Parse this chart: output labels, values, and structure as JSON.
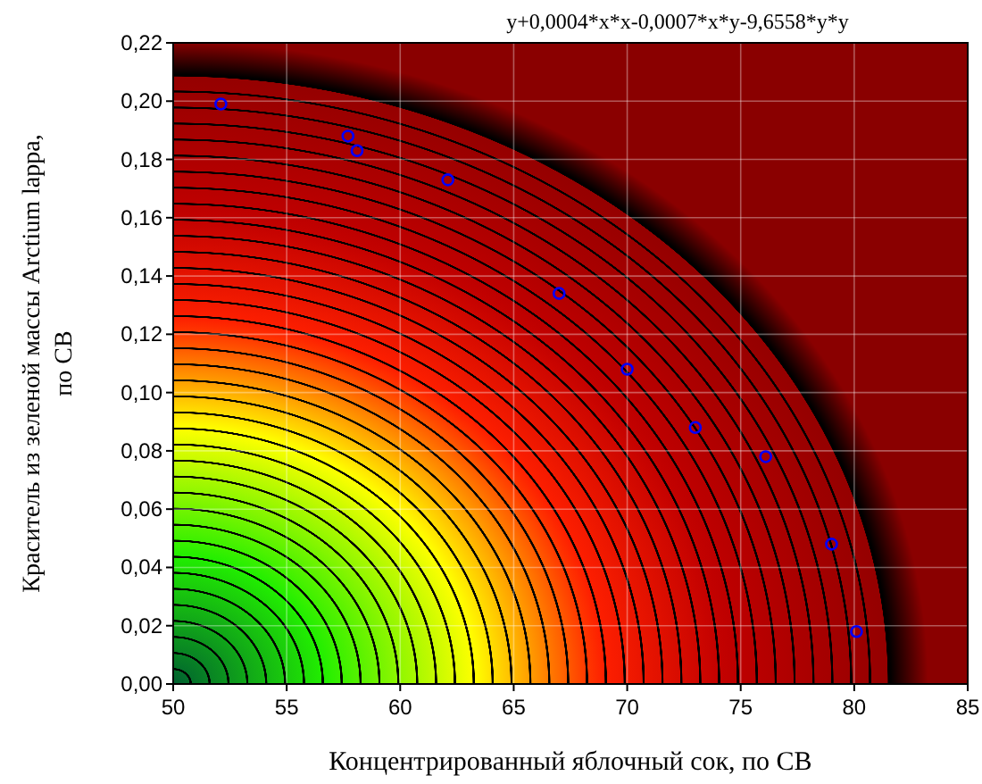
{
  "chart_data": {
    "type": "scatter",
    "title": "y+0,0004*x*x-0,0007*x*y-9,6558*y*y",
    "xlabel": "Концентрированный яблочный сок, по СВ",
    "ylabel": "Краситель из зеленой массы Arctium lappa, по СВ",
    "x": [
      52.1,
      57.7,
      58.1,
      62.1,
      67.0,
      70.0,
      73.0,
      76.1,
      79.0,
      80.1
    ],
    "series": [
      {
        "color": "#0000ff",
        "values": [
          0.199,
          0.188,
          0.183,
          0.173,
          0.134,
          0.108,
          0.088,
          0.078,
          0.048,
          0.018
        ]
      }
    ],
    "marker": "circle",
    "grid": true,
    "xlim": [
      50,
      85
    ],
    "xticks": [
      50,
      55,
      60,
      65,
      70,
      75,
      80,
      85
    ],
    "ylim": [
      0,
      0.22
    ],
    "yticks": [
      {
        "value": 0,
        "label": "0,00"
      },
      {
        "value": 0.02,
        "label": "0,02"
      },
      {
        "value": 0.04,
        "label": "0,04"
      },
      {
        "value": 0.06,
        "label": "0,06"
      },
      {
        "value": 0.08,
        "label": "0,08"
      },
      {
        "value": 0.1,
        "label": "0,10"
      },
      {
        "value": 0.12,
        "label": "0,12"
      },
      {
        "value": 0.14,
        "label": "0,14"
      },
      {
        "value": 0.16,
        "label": "0,16"
      },
      {
        "value": 0.18,
        "label": "0,18"
      },
      {
        "value": 0.2,
        "label": "0,20"
      },
      {
        "value": 0.22,
        "label": "0,22"
      }
    ]
  }
}
